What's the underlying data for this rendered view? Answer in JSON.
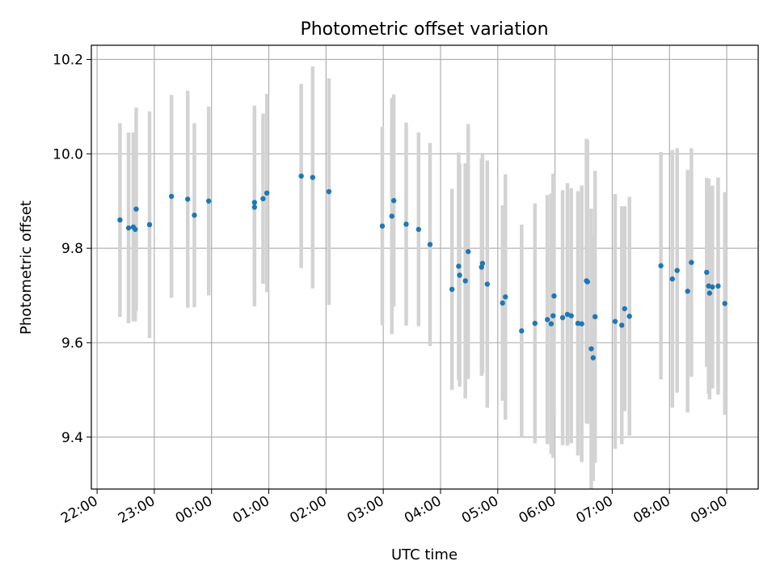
{
  "chart_data": {
    "type": "scatter",
    "title": "Photometric offset variation",
    "xlabel": "UTC time",
    "ylabel": "Photometric offset",
    "x_unit": "hour (UTC, 22:00 → 09:00 next day)",
    "xlim": [
      21.9,
      9.55
    ],
    "ylim": [
      9.29,
      10.23
    ],
    "grid": true,
    "x_ticks": [
      "22:00",
      "23:00",
      "00:00",
      "01:00",
      "02:00",
      "03:00",
      "04:00",
      "05:00",
      "06:00",
      "07:00",
      "08:00",
      "09:00"
    ],
    "y_ticks": [
      "9.4",
      "9.6",
      "9.8",
      "10.0",
      "10.2"
    ],
    "series": [
      {
        "marker_color": "#1f77b4",
        "errorbar_color": "#d3d3d3",
        "x": [
          "22:24",
          "22:33",
          "22:38",
          "22:40",
          "22:41",
          "22:55",
          "23:18",
          "23:35",
          "23:42",
          "23:57",
          "00:45",
          "00:45",
          "00:54",
          "00:58",
          "01:34",
          "01:46",
          "02:03",
          "02:59",
          "03:09",
          "03:11",
          "03:24",
          "03:37",
          "03:49",
          "04:12",
          "04:19",
          "04:20",
          "04:26",
          "04:29",
          "04:43",
          "04:44",
          "04:49",
          "05:05",
          "05:08",
          "05:25",
          "05:39",
          "05:52",
          "05:56",
          "05:58",
          "05:59",
          "06:08",
          "06:13",
          "06:17",
          "06:24",
          "06:28",
          "06:33",
          "06:34",
          "06:38",
          "06:40",
          "06:42",
          "07:03",
          "07:10",
          "07:13",
          "07:18",
          "07:51",
          "08:03",
          "08:08",
          "08:19",
          "08:23",
          "08:39",
          "08:41",
          "08:42",
          "08:45",
          "08:51",
          "08:58"
        ],
        "y": [
          9.86,
          9.843,
          9.845,
          9.84,
          9.883,
          9.85,
          9.91,
          9.904,
          9.87,
          9.9,
          9.897,
          9.887,
          9.905,
          9.917,
          9.953,
          9.95,
          9.92,
          9.847,
          9.868,
          9.901,
          9.851,
          9.84,
          9.808,
          9.713,
          9.762,
          9.743,
          9.731,
          9.793,
          9.76,
          9.768,
          9.724,
          9.684,
          9.697,
          9.625,
          9.641,
          9.649,
          9.64,
          9.657,
          9.699,
          9.653,
          9.66,
          9.657,
          9.641,
          9.64,
          9.731,
          9.729,
          9.587,
          9.568,
          9.655,
          9.645,
          9.637,
          9.672,
          9.656,
          9.763,
          9.735,
          9.753,
          9.709,
          9.77,
          9.749,
          9.72,
          9.705,
          9.718,
          9.72,
          9.683
        ],
        "err": [
          0.205,
          0.202,
          0.2,
          0.195,
          0.215,
          0.24,
          0.215,
          0.23,
          0.195,
          0.2,
          0.205,
          0.21,
          0.18,
          0.21,
          0.195,
          0.235,
          0.24,
          0.21,
          0.25,
          0.225,
          0.215,
          0.205,
          0.215,
          0.213,
          0.241,
          0.236,
          0.249,
          0.27,
          0.23,
          0.232,
          0.262,
          0.207,
          0.26,
          0.225,
          0.254,
          0.264,
          0.276,
          0.301,
          0.252,
          0.27,
          0.278,
          0.27,
          0.28,
          0.293,
          0.301,
          0.301,
          0.297,
          0.261,
          0.309,
          0.27,
          0.252,
          0.217,
          0.253,
          0.241,
          0.273,
          0.259,
          0.257,
          0.242,
          0.2,
          0.228,
          0.225,
          0.215,
          0.23,
          0.236
        ]
      }
    ]
  }
}
